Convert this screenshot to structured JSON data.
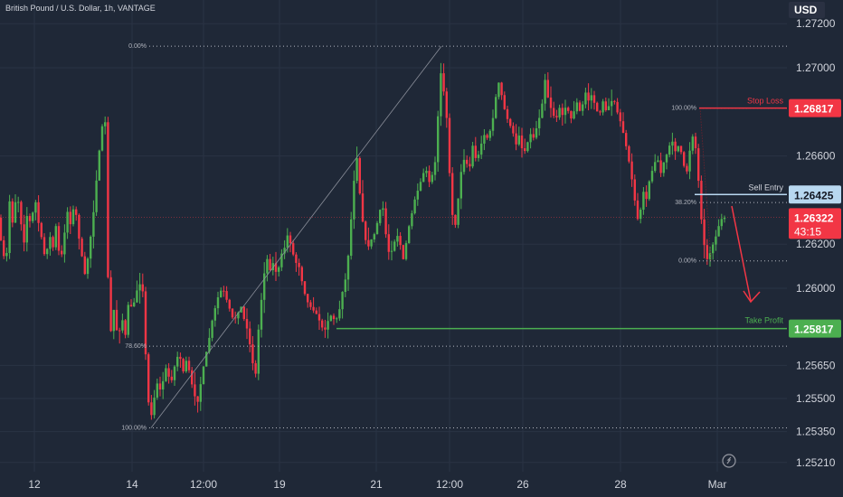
{
  "header": {
    "title": "British Pound / U.S. Dollar, 1h, VANTAGE"
  },
  "currency_label": "USD",
  "colors": {
    "background": "#1f2837",
    "bull": "#4caf50",
    "bear": "#f23645",
    "stop_loss": "#f23645",
    "sell_entry": "#b8d8f0",
    "take_profit": "#4caf50",
    "current_price": "#f23645",
    "arrow": "#f23645"
  },
  "chart_data": {
    "type": "candlestick",
    "y_ticks": [
      "1.27200",
      "1.27000",
      "1.26600",
      "1.26200",
      "1.26000",
      "1.25650",
      "1.25500",
      "1.25350",
      "1.25210"
    ],
    "x_ticks": [
      "12",
      "14",
      "12:00",
      "19",
      "21",
      "12:00",
      "26",
      "28",
      "Mar"
    ],
    "ylim": [
      1.2519,
      1.2734
    ],
    "levels": {
      "stop_loss": {
        "label": "Stop Loss",
        "price": "1.26817"
      },
      "sell_entry": {
        "label": "Sell Entry",
        "price": "1.26425"
      },
      "take_profit": {
        "label": "Take Profit",
        "price": "1.25817"
      }
    },
    "current_price": {
      "price": "1.26322",
      "countdown": "43:15"
    },
    "fib_left": [
      {
        "label": "0.00%",
        "price": 1.27098
      },
      {
        "label": "78.60%",
        "price": 1.25737
      },
      {
        "label": "100.00%",
        "price": 1.25367
      }
    ],
    "fib_right": [
      {
        "label": "100.00%",
        "price": 1.26817
      },
      {
        "label": "38.20%",
        "price": 1.26389
      },
      {
        "label": "0.00%",
        "price": 1.26124
      }
    ],
    "price_path": [
      [
        0,
        1.2625
      ],
      [
        4,
        1.262
      ],
      [
        8,
        1.2608
      ],
      [
        12,
        1.264
      ],
      [
        16,
        1.2628
      ],
      [
        20,
        1.2645
      ],
      [
        24,
        1.2632
      ],
      [
        28,
        1.262
      ],
      [
        32,
        1.2635
      ],
      [
        36,
        1.2628
      ],
      [
        40,
        1.2642
      ],
      [
        44,
        1.263
      ],
      [
        48,
        1.2622
      ],
      [
        52,
        1.2612
      ],
      [
        56,
        1.2625
      ],
      [
        60,
        1.2618
      ],
      [
        64,
        1.263
      ],
      [
        68,
        1.261
      ],
      [
        72,
        1.2622
      ],
      [
        76,
        1.2635
      ],
      [
        80,
        1.2628
      ],
      [
        84,
        1.264
      ],
      [
        88,
        1.2625
      ],
      [
        92,
        1.2615
      ],
      [
        96,
        1.2605
      ],
      [
        100,
        1.2618
      ],
      [
        104,
        1.263
      ],
      [
        108,
        1.2648
      ],
      [
        112,
        1.2665
      ],
      [
        116,
        1.2678
      ],
      [
        120,
        1.2672
      ],
      [
        121,
        1.2605
      ],
      [
        124,
        1.258
      ],
      [
        128,
        1.2592
      ],
      [
        132,
        1.2575
      ],
      [
        136,
        1.2588
      ],
      [
        140,
        1.2578
      ],
      [
        144,
        1.2595
      ],
      [
        148,
        1.259
      ],
      [
        152,
        1.2598
      ],
      [
        156,
        1.2602
      ],
      [
        160,
        1.2598
      ],
      [
        164,
        1.2555
      ],
      [
        168,
        1.254
      ],
      [
        172,
        1.255
      ],
      [
        176,
        1.2558
      ],
      [
        180,
        1.2552
      ],
      [
        184,
        1.2565
      ],
      [
        188,
        1.256
      ],
      [
        192,
        1.2558
      ],
      [
        196,
        1.2568
      ],
      [
        200,
        1.257
      ],
      [
        204,
        1.2562
      ],
      [
        208,
        1.2568
      ],
      [
        212,
        1.256
      ],
      [
        216,
        1.2552
      ],
      [
        220,
        1.2548
      ],
      [
        224,
        1.2558
      ],
      [
        228,
        1.2568
      ],
      [
        232,
        1.2575
      ],
      [
        236,
        1.2585
      ],
      [
        240,
        1.2592
      ],
      [
        244,
        1.2598
      ],
      [
        248,
        1.26
      ],
      [
        252,
        1.2595
      ],
      [
        256,
        1.259
      ],
      [
        260,
        1.2585
      ],
      [
        264,
        1.2588
      ],
      [
        268,
        1.2592
      ],
      [
        272,
        1.2585
      ],
      [
        276,
        1.258
      ],
      [
        280,
        1.2568
      ],
      [
        284,
        1.256
      ],
      [
        288,
        1.2585
      ],
      [
        292,
        1.26
      ],
      [
        296,
        1.2615
      ],
      [
        300,
        1.2608
      ],
      [
        304,
        1.2612
      ],
      [
        308,
        1.2605
      ],
      [
        312,
        1.2615
      ],
      [
        316,
        1.2618
      ],
      [
        320,
        1.2625
      ],
      [
        324,
        1.2618
      ],
      [
        328,
        1.2612
      ],
      [
        332,
        1.261
      ],
      [
        336,
        1.2602
      ],
      [
        340,
        1.2595
      ],
      [
        344,
        1.2592
      ],
      [
        348,
        1.259
      ],
      [
        352,
        1.2588
      ],
      [
        356,
        1.2584
      ],
      [
        360,
        1.258
      ],
      [
        364,
        1.2585
      ],
      [
        368,
        1.2588
      ],
      [
        372,
        1.2585
      ],
      [
        376,
        1.2588
      ],
      [
        380,
        1.2598
      ],
      [
        384,
        1.2605
      ],
      [
        388,
        1.262
      ],
      [
        392,
        1.2645
      ],
      [
        396,
        1.266
      ],
      [
        400,
        1.264
      ],
      [
        404,
        1.2625
      ],
      [
        408,
        1.2618
      ],
      [
        412,
        1.2622
      ],
      [
        416,
        1.2625
      ],
      [
        420,
        1.2632
      ],
      [
        424,
        1.264
      ],
      [
        428,
        1.2625
      ],
      [
        432,
        1.2615
      ],
      [
        436,
        1.2618
      ],
      [
        440,
        1.2625
      ],
      [
        444,
        1.262
      ],
      [
        448,
        1.2612
      ],
      [
        452,
        1.2625
      ],
      [
        456,
        1.2632
      ],
      [
        460,
        1.264
      ],
      [
        464,
        1.2645
      ],
      [
        468,
        1.265
      ],
      [
        472,
        1.2655
      ],
      [
        476,
        1.2648
      ],
      [
        480,
        1.2652
      ],
      [
        484,
        1.266
      ],
      [
        488,
        1.27
      ],
      [
        492,
        1.269
      ],
      [
        496,
        1.2675
      ],
      [
        500,
        1.264
      ],
      [
        504,
        1.2625
      ],
      [
        508,
        1.264
      ],
      [
        512,
        1.2655
      ],
      [
        516,
        1.266
      ],
      [
        520,
        1.2652
      ],
      [
        524,
        1.2665
      ],
      [
        528,
        1.2658
      ],
      [
        532,
        1.2662
      ],
      [
        536,
        1.267
      ],
      [
        540,
        1.2668
      ],
      [
        544,
        1.2672
      ],
      [
        548,
        1.268
      ],
      [
        552,
        1.2695
      ],
      [
        556,
        1.2688
      ],
      [
        560,
        1.268
      ],
      [
        564,
        1.2675
      ],
      [
        568,
        1.2672
      ],
      [
        572,
        1.2665
      ],
      [
        576,
        1.267
      ],
      [
        580,
        1.266
      ],
      [
        584,
        1.2665
      ],
      [
        588,
        1.267
      ],
      [
        592,
        1.2668
      ],
      [
        596,
        1.2675
      ],
      [
        600,
        1.268
      ],
      [
        604,
        1.2695
      ],
      [
        608,
        1.2685
      ],
      [
        612,
        1.268
      ],
      [
        616,
        1.2676
      ],
      [
        620,
        1.2682
      ],
      [
        624,
        1.2678
      ],
      [
        628,
        1.2684
      ],
      [
        632,
        1.2676
      ],
      [
        636,
        1.268
      ],
      [
        640,
        1.2685
      ],
      [
        644,
        1.2678
      ],
      [
        648,
        1.269
      ],
      [
        652,
        1.2685
      ],
      [
        656,
        1.2688
      ],
      [
        660,
        1.2682
      ],
      [
        664,
        1.2678
      ],
      [
        668,
        1.2685
      ],
      [
        672,
        1.268
      ],
      [
        676,
        1.2684
      ],
      [
        680,
        1.2686
      ],
      [
        684,
        1.268
      ],
      [
        688,
        1.2675
      ],
      [
        692,
        1.2668
      ],
      [
        696,
        1.266
      ],
      [
        700,
        1.265
      ],
      [
        704,
        1.2638
      ],
      [
        708,
        1.2628
      ],
      [
        712,
        1.2645
      ],
      [
        716,
        1.264
      ],
      [
        720,
        1.265
      ],
      [
        724,
        1.2655
      ],
      [
        728,
        1.266
      ],
      [
        732,
        1.2652
      ],
      [
        736,
        1.2658
      ],
      [
        740,
        1.2662
      ],
      [
        744,
        1.2668
      ],
      [
        748,
        1.2662
      ],
      [
        752,
        1.2665
      ],
      [
        756,
        1.266
      ],
      [
        760,
        1.265
      ],
      [
        764,
        1.2662
      ],
      [
        768,
        1.267
      ],
      [
        772,
        1.266
      ],
      [
        776,
        1.2635
      ],
      [
        780,
        1.262
      ],
      [
        784,
        1.2612
      ],
      [
        788,
        1.2618
      ],
      [
        792,
        1.2622
      ],
      [
        796,
        1.2628
      ],
      [
        800,
        1.2632
      ],
      [
        804,
        1.2632
      ]
    ]
  }
}
